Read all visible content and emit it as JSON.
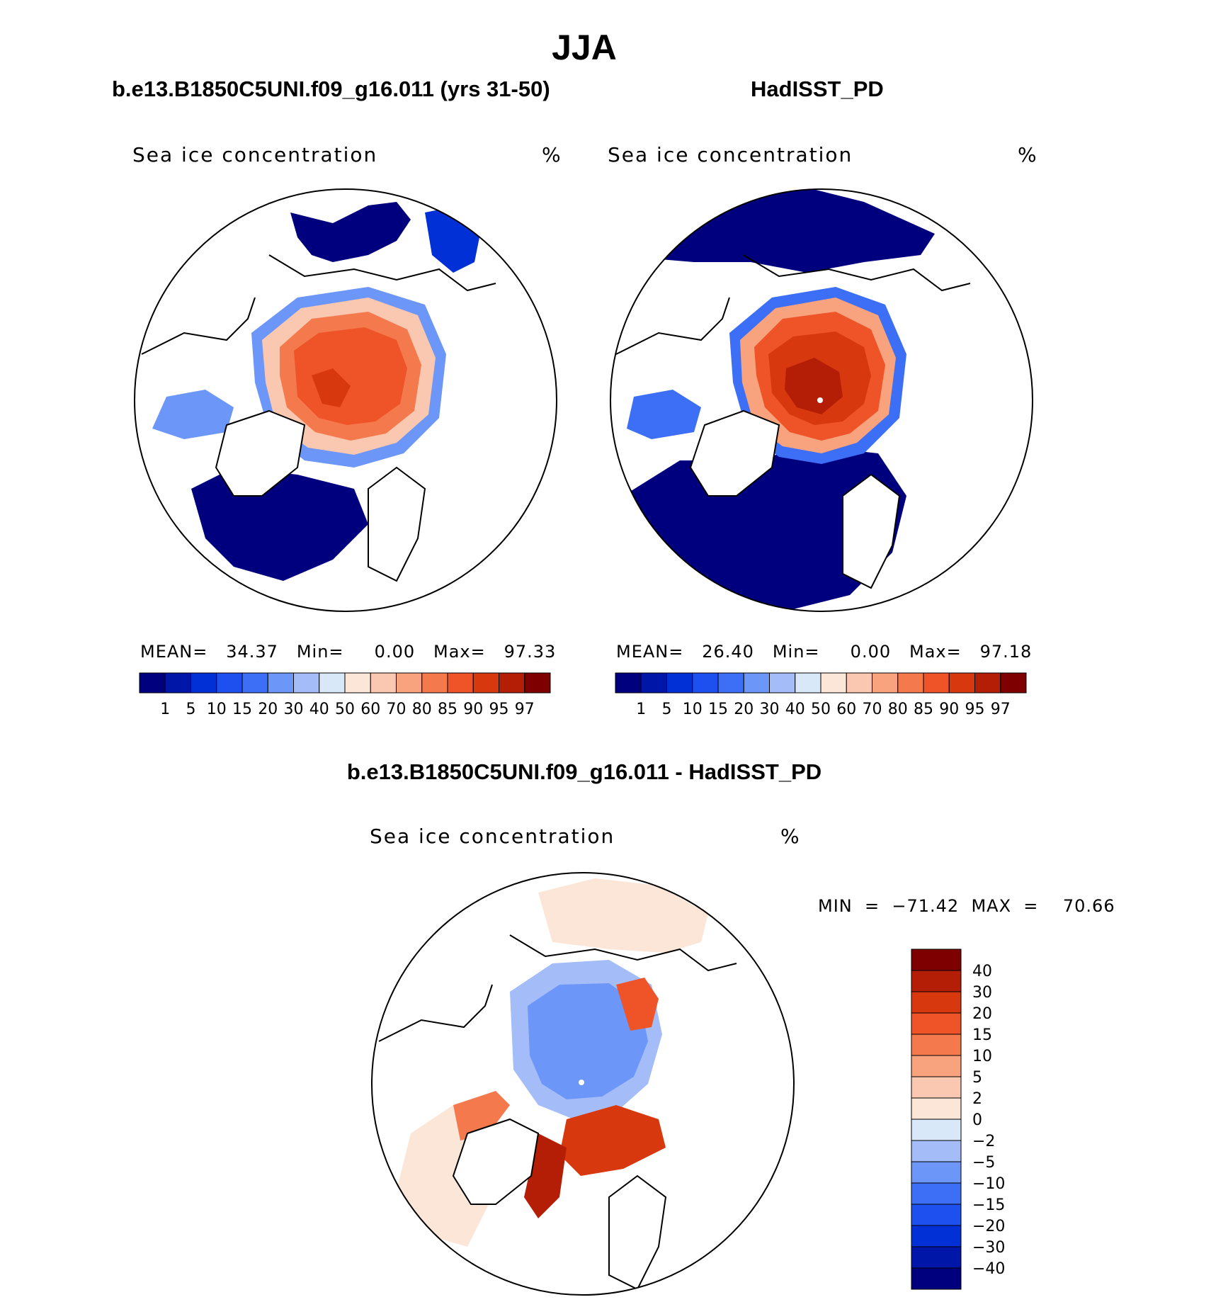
{
  "figure": {
    "title": "JJA",
    "colors": {
      "ice_levels": [
        "#00007f",
        "#0016a8",
        "#0030d6",
        "#1e50f0",
        "#3c6ff5",
        "#6c96f7",
        "#a4bdf8",
        "#d8e8f8",
        "#fce6d8",
        "#fac8b0",
        "#f8a27e",
        "#f47a4e",
        "#ee5428",
        "#d8380e",
        "#b41e06",
        "#7e0000"
      ],
      "diff_levels": [
        "#7e0000",
        "#b41e06",
        "#d8380e",
        "#ee5428",
        "#f47a4e",
        "#f8a27e",
        "#fac8b0",
        "#fce6d8",
        "#d8e8f8",
        "#a4bdf8",
        "#6c96f7",
        "#3c6ff5",
        "#1e50f0",
        "#0030d6",
        "#0016a8",
        "#00007f"
      ]
    }
  },
  "panels": {
    "left": {
      "title": "b.e13.B1850C5UNI.f09_g16.011 (yrs 31-50)",
      "variable": "Sea ice concentration",
      "unit": "%",
      "stats": "MEAN=   34.37   Min=     0.00   Max=   97.33"
    },
    "right": {
      "title": "HadISST_PD",
      "variable": "Sea ice concentration",
      "unit": "%",
      "stats": "MEAN=   26.40   Min=     0.00   Max=   97.18"
    },
    "diff": {
      "title": "b.e13.B1850C5UNI.f09_g16.011 - HadISST_PD",
      "variable": "Sea ice concentration",
      "unit": "%",
      "stats": "MIN  =  −71.42  MAX  =    70.66"
    }
  },
  "chart_data": [
    {
      "type": "heatmap",
      "title": "b.e13.B1850C5UNI.f09_g16.011 (yrs 31-50)",
      "subtitle": "Sea ice concentration",
      "unit": "%",
      "projection": "polar stereographic (Northern Hemisphere)",
      "stats": {
        "mean": 34.37,
        "min": 0.0,
        "max": 97.33
      },
      "colorbar_levels": [
        "1",
        "5",
        "10",
        "15",
        "20",
        "30",
        "40",
        "50",
        "60",
        "70",
        "80",
        "85",
        "90",
        "95",
        "97"
      ],
      "colorbar_orientation": "horizontal"
    },
    {
      "type": "heatmap",
      "title": "HadISST_PD",
      "subtitle": "Sea ice concentration",
      "unit": "%",
      "projection": "polar stereographic (Northern Hemisphere)",
      "stats": {
        "mean": 26.4,
        "min": 0.0,
        "max": 97.18
      },
      "colorbar_levels": [
        "1",
        "5",
        "10",
        "15",
        "20",
        "30",
        "40",
        "50",
        "60",
        "70",
        "80",
        "85",
        "90",
        "95",
        "97"
      ],
      "colorbar_orientation": "horizontal"
    },
    {
      "type": "heatmap",
      "title": "b.e13.B1850C5UNI.f09_g16.011 - HadISST_PD",
      "subtitle": "Sea ice concentration",
      "unit": "%",
      "projection": "polar stereographic (Northern Hemisphere)",
      "stats": {
        "min": -71.42,
        "max": 70.66
      },
      "colorbar_levels": [
        "40",
        "30",
        "20",
        "15",
        "10",
        "5",
        "2",
        "0",
        "−2",
        "−5",
        "−10",
        "−15",
        "−20",
        "−30",
        "−40"
      ],
      "colorbar_orientation": "vertical"
    }
  ]
}
